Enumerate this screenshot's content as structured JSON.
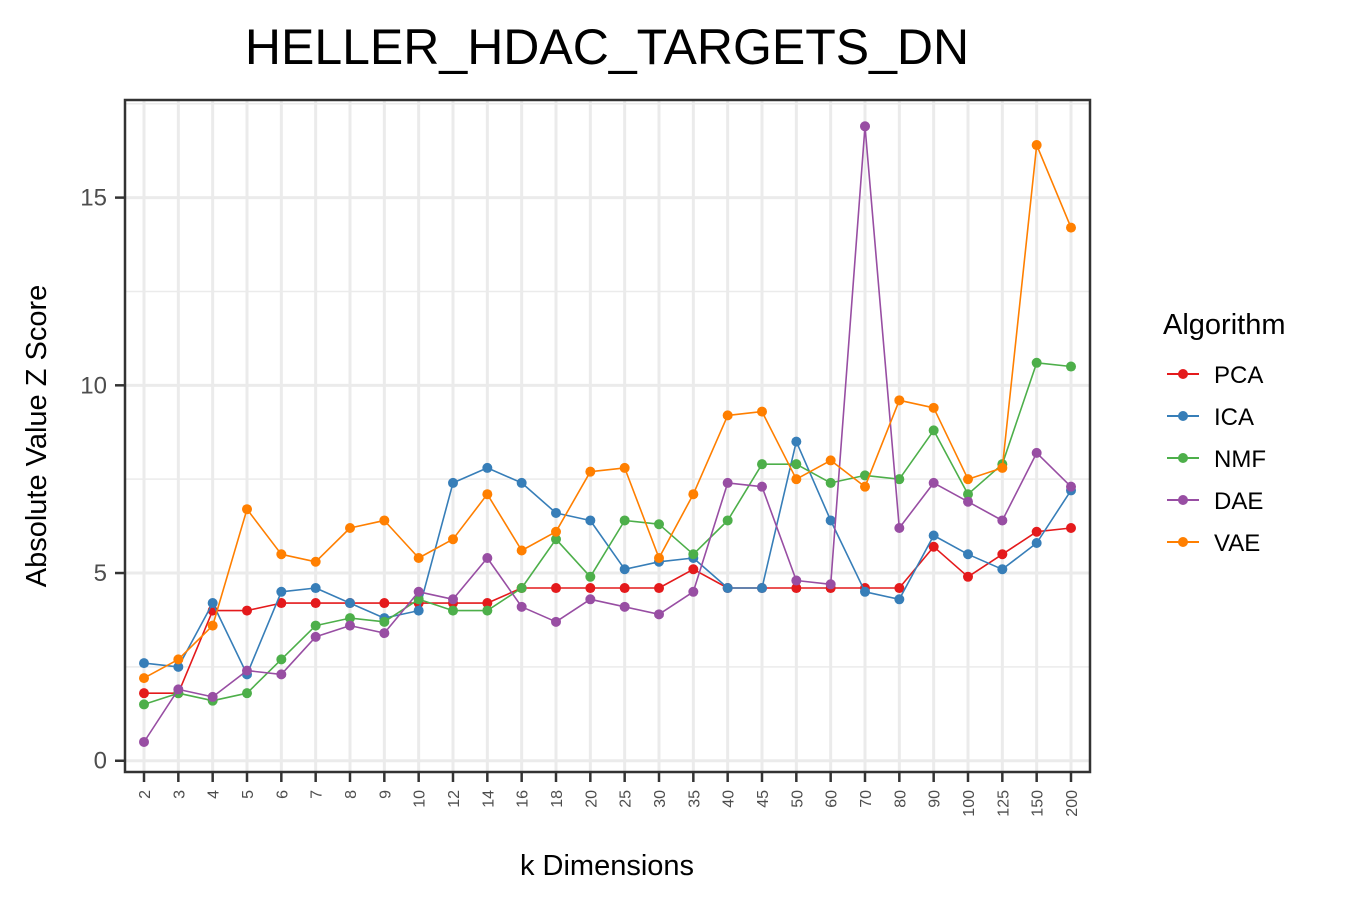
{
  "chart_data": {
    "type": "line",
    "title": "HELLER_HDAC_TARGETS_DN",
    "xlabel": "k Dimensions",
    "ylabel": "Absolute Value Z Score",
    "categories": [
      "2",
      "3",
      "4",
      "5",
      "6",
      "7",
      "8",
      "9",
      "10",
      "12",
      "14",
      "16",
      "18",
      "20",
      "25",
      "30",
      "35",
      "40",
      "45",
      "50",
      "60",
      "70",
      "80",
      "90",
      "100",
      "125",
      "150",
      "200"
    ],
    "yticks": [
      0,
      5,
      10,
      15
    ],
    "ytick_labels": [
      "0",
      "5",
      "10",
      "15"
    ],
    "ylim": [
      -0.3,
      17.6
    ],
    "grid": true,
    "legend": {
      "title": "Algorithm",
      "position": "right"
    },
    "series": [
      {
        "name": "PCA",
        "color": "#e41a1c",
        "values": [
          1.8,
          1.8,
          4.0,
          4.0,
          4.2,
          4.2,
          4.2,
          4.2,
          4.2,
          4.2,
          4.2,
          4.6,
          4.6,
          4.6,
          4.6,
          4.6,
          5.1,
          4.6,
          4.6,
          4.6,
          4.6,
          4.6,
          4.6,
          5.7,
          4.9,
          5.5,
          6.1,
          6.2
        ]
      },
      {
        "name": "ICA",
        "color": "#377eb8",
        "values": [
          2.6,
          2.5,
          4.2,
          2.3,
          4.5,
          4.6,
          4.2,
          3.8,
          4.0,
          7.4,
          7.8,
          7.4,
          6.6,
          6.4,
          5.1,
          5.3,
          5.4,
          4.6,
          4.6,
          8.5,
          6.4,
          4.5,
          4.3,
          6.0,
          5.5,
          5.1,
          5.8,
          7.2
        ]
      },
      {
        "name": "NMF",
        "color": "#4daf4a",
        "values": [
          1.5,
          1.8,
          1.6,
          1.8,
          2.7,
          3.6,
          3.8,
          3.7,
          4.3,
          4.0,
          4.0,
          4.6,
          5.9,
          4.9,
          6.4,
          6.3,
          5.5,
          6.4,
          7.9,
          7.9,
          7.4,
          7.6,
          7.5,
          8.8,
          7.1,
          7.9,
          10.6,
          10.5
        ]
      },
      {
        "name": "DAE",
        "color": "#984ea3",
        "values": [
          0.5,
          1.9,
          1.7,
          2.4,
          2.3,
          3.3,
          3.6,
          3.4,
          4.5,
          4.3,
          5.4,
          4.1,
          3.7,
          4.3,
          4.1,
          3.9,
          4.5,
          7.4,
          7.3,
          4.8,
          4.7,
          16.9,
          6.2,
          7.4,
          6.9,
          6.4,
          8.2,
          7.3
        ]
      },
      {
        "name": "VAE",
        "color": "#ff7f00",
        "values": [
          2.2,
          2.7,
          3.6,
          6.7,
          5.5,
          5.3,
          6.2,
          6.4,
          5.4,
          5.9,
          7.1,
          5.6,
          6.1,
          7.7,
          7.8,
          5.4,
          7.1,
          9.2,
          9.3,
          7.5,
          8.0,
          7.3,
          9.6,
          9.4,
          7.5,
          7.8,
          16.4,
          14.2
        ]
      }
    ]
  }
}
